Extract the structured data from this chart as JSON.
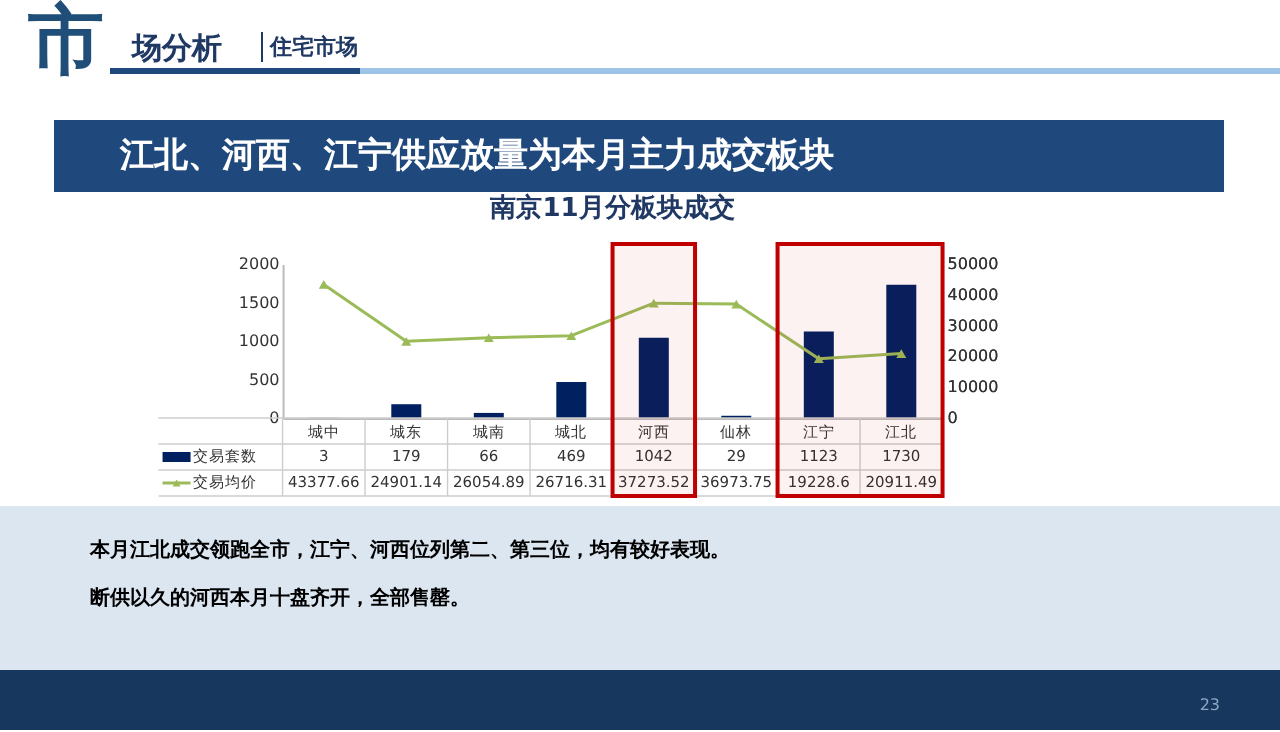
{
  "chart_data": {
    "type": "bar",
    "title": "南京11月分板块成交",
    "categories": [
      "城中",
      "城东",
      "城南",
      "城北",
      "河西",
      "仙林",
      "江宁",
      "江北"
    ],
    "series": [
      {
        "name": "交易套数",
        "type": "bar",
        "color": "#002060",
        "values": [
          3,
          179,
          66,
          469,
          1042,
          29,
          1123,
          1730
        ]
      },
      {
        "name": "交易均价",
        "type": "line",
        "axis": "y2",
        "color": "#9bbb59",
        "marker": "triangle",
        "values": [
          43377.66,
          24901.14,
          26054.89,
          26716.31,
          37273.52,
          36973.75,
          19228.6,
          20911.49
        ]
      }
    ],
    "ylim": [
      0,
      2000
    ],
    "yticks": [
      0,
      500,
      1000,
      1500,
      2000
    ],
    "y2lim": [
      0,
      50000
    ],
    "y2ticks": [
      0,
      10000,
      20000,
      30000,
      40000,
      50000
    ],
    "data_labels": true,
    "legend": "bottom",
    "grid": false,
    "bands": [
      {
        "axis": "x",
        "from": "河西",
        "to": "河西",
        "color": "#c00000"
      },
      {
        "axis": "x",
        "from": "江宁",
        "to": "江北",
        "color": "#c00000"
      }
    ],
    "annotations": [
      "市场分析",
      "住宅市场",
      "江北、河西、江宁供应放量为本月主力成交板块",
      "本月江北成交领跑全市，江宁、河西位列第二、第三位，均有较好表现。",
      "断供以久的河西本月十盘齐开，全部售罄。",
      "23"
    ]
  }
}
